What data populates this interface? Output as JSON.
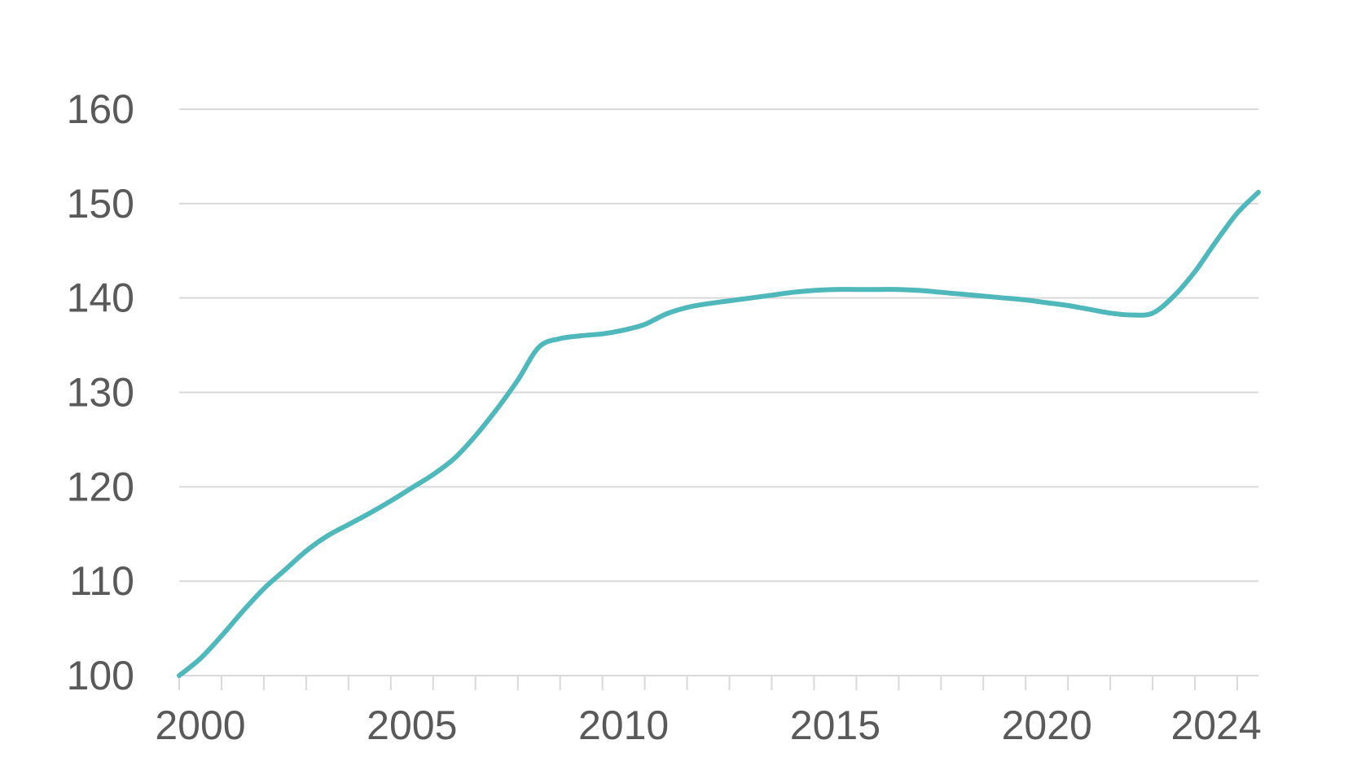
{
  "chart_data": {
    "type": "line",
    "title": "",
    "xlabel": "",
    "ylabel": "",
    "x_axis": {
      "min": 2000.0,
      "max": 2025.5,
      "tick_labels": [
        2000,
        2005,
        2010,
        2015,
        2020,
        2024
      ],
      "minor_ticks": [
        2000,
        2001,
        2002,
        2003,
        2004,
        2005,
        2006,
        2007,
        2008,
        2009,
        2010,
        2011,
        2012,
        2013,
        2014,
        2015,
        2016,
        2017,
        2018,
        2019,
        2020,
        2021,
        2022,
        2023,
        2024,
        2025
      ]
    },
    "y_axis": {
      "min": 100,
      "max": 160,
      "tick_labels": [
        100,
        110,
        120,
        130,
        140,
        150,
        160
      ]
    },
    "grid": true,
    "legend": "none",
    "colors": {
      "line": "#4fb8bb",
      "grid": "#d9d9d9",
      "text": "#595959"
    },
    "series": [
      {
        "x": [
          2000.0,
          2000.5,
          2001.0,
          2001.5,
          2002.0,
          2002.5,
          2003.0,
          2003.5,
          2004.0,
          2004.5,
          2005.0,
          2005.5,
          2006.0,
          2006.5,
          2007.0,
          2007.5,
          2008.0,
          2008.5,
          2009.0,
          2009.5,
          2010.0,
          2010.5,
          2011.0,
          2011.5,
          2012.0,
          2012.5,
          2013.0,
          2013.5,
          2014.0,
          2014.5,
          2015.0,
          2015.5,
          2016.0,
          2016.5,
          2017.0,
          2017.5,
          2018.0,
          2018.5,
          2019.0,
          2019.5,
          2020.0,
          2020.5,
          2021.0,
          2021.5,
          2022.0,
          2022.5,
          2023.0,
          2023.5,
          2024.0,
          2024.5,
          2025.0,
          2025.5
        ],
        "values": [
          100.0,
          101.8,
          104.2,
          106.8,
          109.2,
          111.2,
          113.2,
          114.8,
          116.0,
          117.2,
          118.5,
          119.9,
          121.3,
          123.0,
          125.4,
          128.2,
          131.3,
          134.8,
          135.7,
          136.0,
          136.2,
          136.6,
          137.2,
          138.3,
          139.0,
          139.4,
          139.7,
          140.0,
          140.3,
          140.6,
          140.8,
          140.9,
          140.9,
          140.9,
          140.9,
          140.8,
          140.6,
          140.4,
          140.2,
          140.0,
          139.8,
          139.5,
          139.2,
          138.8,
          138.4,
          138.2,
          138.4,
          140.2,
          142.8,
          146.0,
          149.0,
          151.2
        ]
      }
    ]
  }
}
